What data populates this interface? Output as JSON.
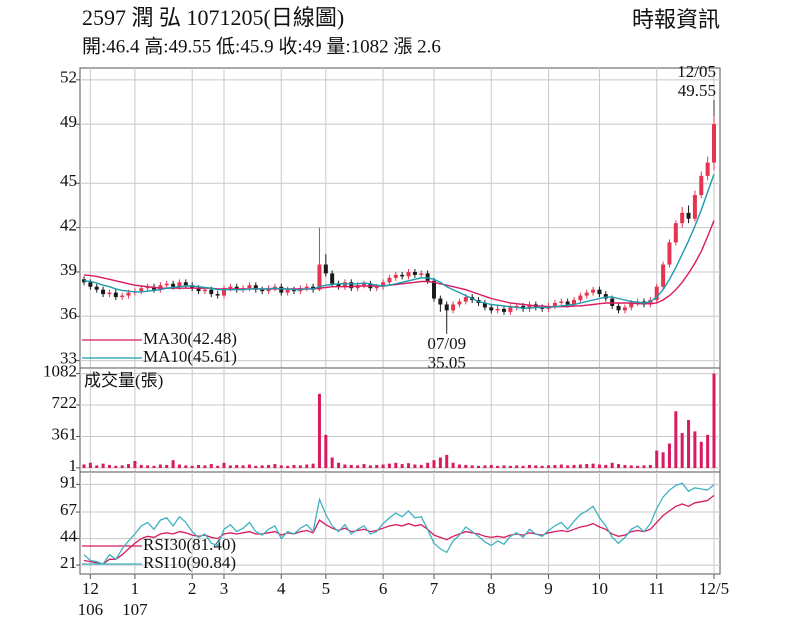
{
  "chart_data": [
    {
      "type": "candlestick",
      "title": "2597  潤 弘 1071205(日線圖)",
      "subtitle": "開:46.4 高:49.55 低:45.9 收:49 量:1082 漲 2.6",
      "source": "時報資訊",
      "ylim": [
        32.5,
        52.8
      ],
      "yticks": [
        33,
        36,
        39,
        42,
        45,
        49,
        52
      ],
      "grid": true,
      "colors": {
        "up": "#e5344f",
        "down": "#1a1a1a"
      },
      "open": [
        38.5,
        38.3,
        38.0,
        37.8,
        37.5,
        37.6,
        37.3,
        37.4,
        37.6,
        37.7,
        37.9,
        38.0,
        37.8,
        38.1,
        38.2,
        38.0,
        38.3,
        38.1,
        37.9,
        37.7,
        37.8,
        37.5,
        37.4,
        37.9,
        38.0,
        37.8,
        37.9,
        38.1,
        37.8,
        37.7,
        37.9,
        38.0,
        37.6,
        37.8,
        37.7,
        37.9,
        38.0,
        37.8,
        39.5,
        38.9,
        38.2,
        38.0,
        38.3,
        37.9,
        38.1,
        38.2,
        37.9,
        38.0,
        38.3,
        38.6,
        38.8,
        38.7,
        39.0,
        38.8,
        38.9,
        38.4,
        37.2,
        36.8,
        36.4,
        36.8,
        37.0,
        37.3,
        37.1,
        36.9,
        36.6,
        36.4,
        36.5,
        36.3,
        36.6,
        36.7,
        36.5,
        36.8,
        36.6,
        36.5,
        36.7,
        36.9,
        37.0,
        36.8,
        37.1,
        37.4,
        37.6,
        37.8,
        37.5,
        37.2,
        36.7,
        36.4,
        36.6,
        36.9,
        37.0,
        36.8,
        37.1,
        38.0,
        39.5,
        41.0,
        42.3,
        43.0,
        42.6,
        44.2,
        45.5,
        46.4
      ],
      "high": [
        38.7,
        38.5,
        38.2,
        38.0,
        37.8,
        37.8,
        37.6,
        37.8,
        37.9,
        38.1,
        38.2,
        38.2,
        38.3,
        38.4,
        38.4,
        38.5,
        38.5,
        38.3,
        38.1,
        38.0,
        38.0,
        37.7,
        38.1,
        38.2,
        38.2,
        38.1,
        38.3,
        38.3,
        38.0,
        38.1,
        38.2,
        38.2,
        38.0,
        38.0,
        38.1,
        38.2,
        38.2,
        42.0,
        40.2,
        39.1,
        38.4,
        38.5,
        38.5,
        38.3,
        38.4,
        38.4,
        38.2,
        38.5,
        38.8,
        39.0,
        39.0,
        39.2,
        39.2,
        39.1,
        39.1,
        38.6,
        37.4,
        37.0,
        37.0,
        37.2,
        37.5,
        37.5,
        37.3,
        37.1,
        36.8,
        36.7,
        36.7,
        36.8,
        36.9,
        36.9,
        37.0,
        37.0,
        36.8,
        36.9,
        37.1,
        37.2,
        37.2,
        37.3,
        37.6,
        37.8,
        38.0,
        38.0,
        37.7,
        37.4,
        36.9,
        36.8,
        37.1,
        37.2,
        37.2,
        37.3,
        38.2,
        39.7,
        41.2,
        42.5,
        43.4,
        43.5,
        44.5,
        45.8,
        46.8,
        49.55
      ],
      "low": [
        38.1,
        37.8,
        37.6,
        37.3,
        37.3,
        37.1,
        37.1,
        37.2,
        37.4,
        37.5,
        37.7,
        37.6,
        37.6,
        37.9,
        37.8,
        37.8,
        37.9,
        37.7,
        37.5,
        37.5,
        37.3,
        37.2,
        37.2,
        37.7,
        37.6,
        37.6,
        37.7,
        37.6,
        37.5,
        37.5,
        37.7,
        37.4,
        37.4,
        37.5,
        37.5,
        37.7,
        37.6,
        37.7,
        38.7,
        38.0,
        37.8,
        37.8,
        37.7,
        37.7,
        37.9,
        37.7,
        37.7,
        37.8,
        38.1,
        38.4,
        38.5,
        38.5,
        38.6,
        38.6,
        38.2,
        37.0,
        36.3,
        35.05,
        36.2,
        36.6,
        36.8,
        36.9,
        36.7,
        36.4,
        36.2,
        36.2,
        36.1,
        36.1,
        36.4,
        36.3,
        36.3,
        36.4,
        36.3,
        36.3,
        36.5,
        36.7,
        36.6,
        36.6,
        36.9,
        37.2,
        37.4,
        37.3,
        37.0,
        36.5,
        36.2,
        36.2,
        36.4,
        36.7,
        36.6,
        36.6,
        36.9,
        37.8,
        39.3,
        40.8,
        42.0,
        42.3,
        42.4,
        44.0,
        45.2,
        45.9
      ],
      "close": [
        38.3,
        38.0,
        37.8,
        37.5,
        37.6,
        37.3,
        37.4,
        37.6,
        37.7,
        37.9,
        38.0,
        37.8,
        38.1,
        38.2,
        38.0,
        38.3,
        38.1,
        37.9,
        37.7,
        37.8,
        37.5,
        37.4,
        37.9,
        38.0,
        37.8,
        37.9,
        38.1,
        37.8,
        37.7,
        37.9,
        38.0,
        37.6,
        37.8,
        37.7,
        37.9,
        38.0,
        37.8,
        39.5,
        38.9,
        38.2,
        38.0,
        38.3,
        37.9,
        38.1,
        38.2,
        37.9,
        38.0,
        38.3,
        38.6,
        38.8,
        38.7,
        39.0,
        38.8,
        38.9,
        38.4,
        37.2,
        36.8,
        36.4,
        36.8,
        37.0,
        37.3,
        37.1,
        36.9,
        36.6,
        36.4,
        36.5,
        36.3,
        36.6,
        36.7,
        36.5,
        36.8,
        36.6,
        36.5,
        36.7,
        36.9,
        37.0,
        36.8,
        37.1,
        37.4,
        37.6,
        37.8,
        37.5,
        37.2,
        36.7,
        36.4,
        36.6,
        36.9,
        37.0,
        36.8,
        37.1,
        38.0,
        39.5,
        41.0,
        42.3,
        43.0,
        42.6,
        44.2,
        45.5,
        46.4,
        49.0
      ],
      "overlays": [
        {
          "name": "MA30(42.48)",
          "color": "#d81b60",
          "values": [
            38.8,
            38.75,
            38.7,
            38.6,
            38.5,
            38.4,
            38.3,
            38.2,
            38.1,
            38.05,
            38.0,
            37.95,
            37.9,
            37.9,
            37.9,
            37.9,
            37.9,
            37.9,
            37.9,
            37.9,
            37.9,
            37.85,
            37.85,
            37.85,
            37.85,
            37.85,
            37.85,
            37.85,
            37.85,
            37.85,
            37.85,
            37.85,
            37.85,
            37.85,
            37.85,
            37.85,
            37.85,
            37.9,
            37.95,
            38.0,
            38.0,
            38.0,
            38.0,
            38.05,
            38.05,
            38.05,
            38.05,
            38.05,
            38.1,
            38.15,
            38.2,
            38.25,
            38.3,
            38.35,
            38.35,
            38.3,
            38.2,
            38.1,
            38.0,
            37.9,
            37.8,
            37.65,
            37.5,
            37.35,
            37.2,
            37.1,
            37.0,
            36.9,
            36.85,
            36.8,
            36.75,
            36.7,
            36.7,
            36.65,
            36.65,
            36.65,
            36.65,
            36.7,
            36.7,
            36.75,
            36.8,
            36.85,
            36.9,
            36.9,
            36.9,
            36.9,
            36.9,
            36.85,
            36.85,
            36.85,
            36.9,
            37.1,
            37.4,
            37.8,
            38.3,
            38.9,
            39.6,
            40.4,
            41.4,
            42.48
          ]
        },
        {
          "name": "MA10(45.61)",
          "color": "#1a9bb0",
          "values": [
            38.4,
            38.35,
            38.25,
            38.1,
            38.0,
            37.85,
            37.75,
            37.7,
            37.65,
            37.65,
            37.7,
            37.75,
            37.8,
            37.9,
            37.95,
            38.0,
            38.05,
            38.05,
            38.0,
            37.95,
            37.9,
            37.8,
            37.8,
            37.8,
            37.8,
            37.8,
            37.85,
            37.85,
            37.85,
            37.85,
            37.9,
            37.85,
            37.85,
            37.8,
            37.8,
            37.85,
            37.85,
            38.0,
            38.1,
            38.15,
            38.2,
            38.2,
            38.2,
            38.2,
            38.25,
            38.2,
            38.1,
            38.05,
            38.1,
            38.2,
            38.3,
            38.4,
            38.5,
            38.6,
            38.6,
            38.5,
            38.3,
            38.0,
            37.8,
            37.6,
            37.4,
            37.2,
            37.0,
            36.9,
            36.8,
            36.75,
            36.7,
            36.65,
            36.6,
            36.55,
            36.55,
            36.6,
            36.6,
            36.6,
            36.65,
            36.7,
            36.75,
            36.8,
            36.9,
            37.0,
            37.1,
            37.2,
            37.3,
            37.3,
            37.2,
            37.1,
            37.0,
            36.95,
            36.9,
            37.0,
            37.3,
            37.8,
            38.5,
            39.3,
            40.2,
            41.1,
            42.1,
            43.2,
            44.4,
            45.61
          ]
        }
      ],
      "annotations": [
        {
          "label": "12/05",
          "value": 49.55
        },
        {
          "label": "07/09",
          "value": 35.05
        }
      ]
    },
    {
      "type": "bar",
      "title": "成交量(張)",
      "color": "#d81b60",
      "ylim": [
        0,
        1100
      ],
      "yticks": [
        1,
        361,
        722,
        1082
      ],
      "grid": true,
      "values": [
        40,
        60,
        30,
        50,
        35,
        25,
        30,
        45,
        80,
        35,
        30,
        25,
        40,
        35,
        90,
        40,
        30,
        25,
        35,
        30,
        45,
        25,
        60,
        30,
        35,
        30,
        40,
        25,
        30,
        35,
        45,
        30,
        25,
        35,
        30,
        40,
        50,
        850,
        380,
        120,
        60,
        40,
        35,
        30,
        45,
        30,
        35,
        40,
        50,
        60,
        45,
        55,
        40,
        35,
        60,
        90,
        120,
        150,
        60,
        40,
        35,
        30,
        25,
        30,
        35,
        25,
        30,
        25,
        30,
        25,
        35,
        30,
        25,
        30,
        35,
        40,
        30,
        35,
        40,
        45,
        50,
        40,
        35,
        60,
        45,
        35,
        30,
        25,
        30,
        35,
        200,
        180,
        280,
        650,
        400,
        550,
        420,
        300,
        380,
        1082
      ]
    },
    {
      "type": "line",
      "ylim": [
        15,
        100
      ],
      "yticks": [
        21,
        44,
        67,
        91
      ],
      "grid": true,
      "series": [
        {
          "name": "RSI30(81.40)",
          "color": "#d81b60",
          "values": [
            25,
            24,
            23,
            22,
            26,
            26,
            30,
            35,
            40,
            44,
            46,
            45,
            48,
            49,
            48,
            50,
            49,
            47,
            46,
            47,
            45,
            44,
            48,
            49,
            48,
            49,
            50,
            48,
            48,
            49,
            50,
            47,
            49,
            48,
            50,
            51,
            49,
            60,
            56,
            53,
            51,
            53,
            50,
            51,
            52,
            50,
            51,
            53,
            55,
            56,
            55,
            57,
            55,
            56,
            52,
            47,
            45,
            43,
            46,
            48,
            50,
            49,
            48,
            46,
            45,
            46,
            45,
            47,
            48,
            47,
            49,
            48,
            47,
            49,
            50,
            51,
            50,
            52,
            54,
            55,
            57,
            54,
            52,
            48,
            46,
            47,
            50,
            51,
            50,
            52,
            58,
            64,
            68,
            72,
            74,
            72,
            75,
            76,
            77,
            81.4
          ]
        },
        {
          "name": "RSI10(90.84)",
          "color": "#3fb1c4",
          "values": [
            30,
            25,
            24,
            22,
            30,
            26,
            35,
            42,
            48,
            55,
            58,
            52,
            60,
            62,
            55,
            63,
            58,
            50,
            45,
            48,
            40,
            38,
            52,
            56,
            50,
            53,
            58,
            50,
            47,
            52,
            55,
            44,
            50,
            48,
            53,
            56,
            50,
            78,
            65,
            55,
            50,
            56,
            48,
            52,
            55,
            48,
            50,
            57,
            62,
            66,
            63,
            68,
            62,
            63,
            52,
            40,
            35,
            32,
            42,
            47,
            54,
            50,
            46,
            41,
            38,
            42,
            39,
            46,
            49,
            45,
            52,
            48,
            46,
            51,
            55,
            58,
            52,
            59,
            65,
            68,
            72,
            62,
            55,
            45,
            40,
            45,
            52,
            55,
            50,
            57,
            70,
            80,
            86,
            90,
            92,
            85,
            88,
            87,
            86,
            90.84
          ]
        }
      ],
      "categories": [
        null,
        "12",
        null,
        null,
        null,
        null,
        null,
        null,
        "1",
        null,
        null,
        null,
        null,
        null,
        null,
        null,
        null,
        "2",
        null,
        null,
        null,
        null,
        "3",
        null,
        null,
        null,
        null,
        null,
        null,
        null,
        null,
        "4",
        null,
        null,
        null,
        null,
        null,
        null,
        "5",
        null,
        null,
        null,
        null,
        null,
        null,
        null,
        null,
        "6",
        null,
        null,
        null,
        null,
        null,
        null,
        null,
        "7",
        null,
        null,
        null,
        null,
        null,
        null,
        null,
        null,
        "8",
        null,
        null,
        null,
        null,
        null,
        null,
        null,
        null,
        "9",
        null,
        null,
        null,
        null,
        null,
        null,
        null,
        "10",
        null,
        null,
        null,
        null,
        null,
        null,
        null,
        null,
        "11",
        null,
        null,
        null,
        null,
        null,
        null,
        null,
        null,
        "12/5"
      ],
      "subcategories": [
        null,
        "106",
        null,
        null,
        null,
        null,
        null,
        null,
        "107",
        null,
        null,
        null,
        null,
        null,
        null,
        null,
        null,
        null,
        null,
        null,
        null,
        null,
        null,
        null,
        null,
        null,
        null,
        null,
        null,
        null,
        null,
        null,
        null,
        null,
        null,
        null,
        null,
        null,
        null,
        null,
        null,
        null,
        null,
        null,
        null,
        null,
        null,
        null,
        null,
        null,
        null,
        null,
        null,
        null,
        null,
        null,
        null,
        null,
        null,
        null,
        null,
        null,
        null,
        null,
        null,
        null,
        null,
        null,
        null,
        null,
        null,
        null,
        null,
        null,
        null,
        null,
        null,
        null,
        null,
        null,
        null,
        null,
        null,
        null,
        null,
        null,
        null,
        null,
        null,
        null,
        null,
        null,
        null,
        null,
        null,
        null,
        null,
        null,
        null,
        null
      ]
    }
  ]
}
